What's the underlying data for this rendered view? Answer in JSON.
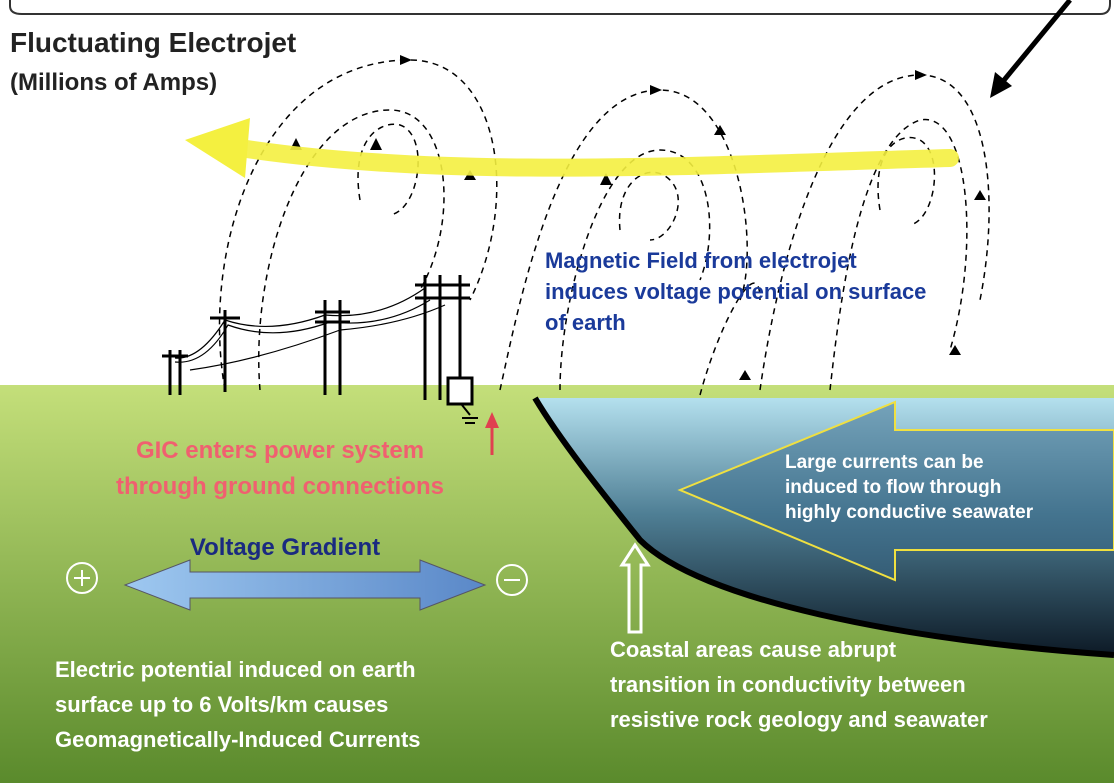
{
  "title": {
    "lines": [
      "Fluctuating Electrojet",
      "(Millions of Amps)"
    ]
  },
  "field_label": {
    "lines": [
      "Magnetic Field from electrojet",
      "induces voltage potential on surface",
      "of earth"
    ]
  },
  "gic_label": {
    "lines": [
      "GIC enters power system",
      "through ground connections"
    ]
  },
  "sea_label": {
    "lines": [
      "Large currents can be",
      "induced to flow through",
      "highly conductive seawater"
    ]
  },
  "gradient_label": "Voltage Gradient",
  "potential_label": {
    "lines": [
      "Electric potential induced on earth",
      "surface up to 6 Volts/km causes",
      "Geomagnetically-Induced Currents"
    ]
  },
  "coastal_label": {
    "lines": [
      "Coastal areas cause abrupt",
      "transition in conductivity between",
      "resistive rock geology and seawater"
    ]
  }
}
